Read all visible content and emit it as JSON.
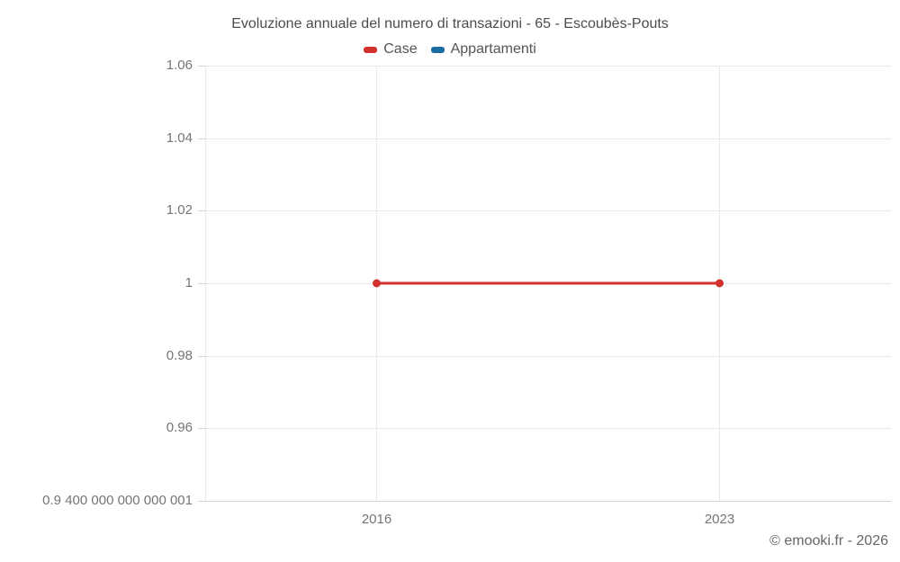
{
  "footer": {
    "text": "© emooki.fr - 2026"
  },
  "chart_data": {
    "type": "line",
    "title": "Evoluzione annuale del numero di transazioni - 65 - Escoubès-Pouts",
    "xlabel": "",
    "ylabel": "",
    "legend_position": "top",
    "grid": true,
    "legend": [
      {
        "label": "Case",
        "color": "#d2312d"
      },
      {
        "label": "Appartamenti",
        "color": "#1a6ca3"
      }
    ],
    "x": [
      2016,
      2023
    ],
    "x_tick_labels": [
      "2016",
      "2023"
    ],
    "xlim": [
      2012.5,
      2026.5
    ],
    "ylim": [
      0.9400000000000001,
      1.06
    ],
    "y_ticks": [
      {
        "value": 1.06,
        "label": "1.06"
      },
      {
        "value": 1.04,
        "label": "1.04"
      },
      {
        "value": 1.02,
        "label": "1.02"
      },
      {
        "value": 1.0,
        "label": "1"
      },
      {
        "value": 0.98,
        "label": "0.98"
      },
      {
        "value": 0.96,
        "label": "0.96"
      },
      {
        "value": 0.9400000000000001,
        "label": "0.9 400 000 000 000 001"
      }
    ],
    "series": [
      {
        "name": "Case",
        "color": "#d2312d",
        "values": [
          1,
          1
        ]
      },
      {
        "name": "Appartamenti",
        "color": "#1a6ca3",
        "values": []
      }
    ]
  }
}
